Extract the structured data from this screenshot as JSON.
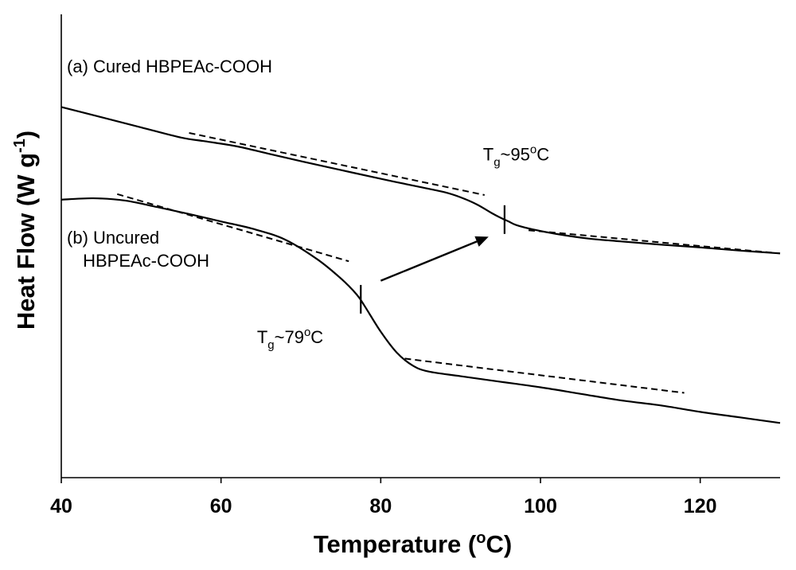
{
  "chart_data": {
    "type": "line",
    "title": "",
    "xlabel": "Temperature (",
    "xlabel_sup": "o",
    "xlabel_end": "C)",
    "ylabel": "Heat Flow (W g",
    "ylabel_sup": "-1",
    "ylabel_end": ")",
    "xlim": [
      40,
      130
    ],
    "ylim": [
      0,
      1
    ],
    "y_ticks_shown": false,
    "grid": false,
    "x_ticks": [
      40,
      60,
      80,
      100,
      120
    ],
    "series": [
      {
        "name": "(a) Cured HBPEAc-COOH",
        "color": "#000000",
        "x": [
          40,
          45,
          50,
          55,
          58,
          62,
          66,
          70,
          75,
          80,
          85,
          88,
          90,
          92,
          94,
          95,
          96,
          97,
          99,
          102,
          106,
          110,
          115,
          120,
          125,
          130
        ],
        "y": [
          0.8,
          0.778,
          0.756,
          0.734,
          0.726,
          0.715,
          0.699,
          0.683,
          0.664,
          0.645,
          0.627,
          0.616,
          0.605,
          0.59,
          0.57,
          0.561,
          0.553,
          0.545,
          0.536,
          0.526,
          0.516,
          0.51,
          0.503,
          0.497,
          0.49,
          0.484
        ]
      },
      {
        "name": "(b) Uncured HBPEAc-COOH",
        "color": "#000000",
        "x": [
          40,
          44,
          48,
          52,
          56,
          60,
          64,
          68,
          72,
          75,
          77,
          78,
          80,
          82,
          84,
          86,
          90,
          95,
          100,
          105,
          110,
          115,
          120,
          125,
          130
        ],
        "y": [
          0.6,
          0.603,
          0.598,
          0.584,
          0.569,
          0.553,
          0.537,
          0.514,
          0.472,
          0.43,
          0.395,
          0.37,
          0.315,
          0.27,
          0.242,
          0.229,
          0.219,
          0.207,
          0.195,
          0.181,
          0.167,
          0.156,
          0.142,
          0.13,
          0.118
        ]
      }
    ],
    "tangents": [
      {
        "series": 0,
        "x": [
          56,
          93
        ],
        "y": [
          0.744,
          0.61
        ]
      },
      {
        "series": 0,
        "x": [
          98.5,
          130
        ],
        "y": [
          0.534,
          0.484
        ]
      },
      {
        "series": 1,
        "x": [
          47,
          76
        ],
        "y": [
          0.612,
          0.467
        ]
      },
      {
        "series": 1,
        "x": [
          83,
          118
        ],
        "y": [
          0.257,
          0.183
        ]
      }
    ],
    "tg_markers": [
      {
        "series": 1,
        "x": 77.5,
        "y": 0.385
      },
      {
        "series": 0,
        "x": 95.5,
        "y": 0.557
      }
    ],
    "arrow": {
      "from": [
        80,
        0.425
      ],
      "to": [
        93.5,
        0.52
      ]
    },
    "annotations": [
      {
        "id": "label-a",
        "text": "(a) Cured HBPEAc-COOH",
        "x": 40.7,
        "y": 0.875
      },
      {
        "id": "label-b1",
        "text": "(b) Uncured",
        "x": 40.7,
        "y": 0.505
      },
      {
        "id": "label-b2",
        "text": "HBPEAc-COOH",
        "x": 42.7,
        "y": 0.455
      }
    ],
    "tg_labels": [
      {
        "id": "tg-95",
        "main": "T",
        "sub": "g",
        "mid": "~95",
        "sup": "o",
        "end": "C",
        "x": 92.8,
        "y": 0.685
      },
      {
        "id": "tg-79",
        "main": "T",
        "sub": "g",
        "mid": "~79",
        "sup": "o",
        "end": "C",
        "x": 64.5,
        "y": 0.29
      }
    ]
  }
}
